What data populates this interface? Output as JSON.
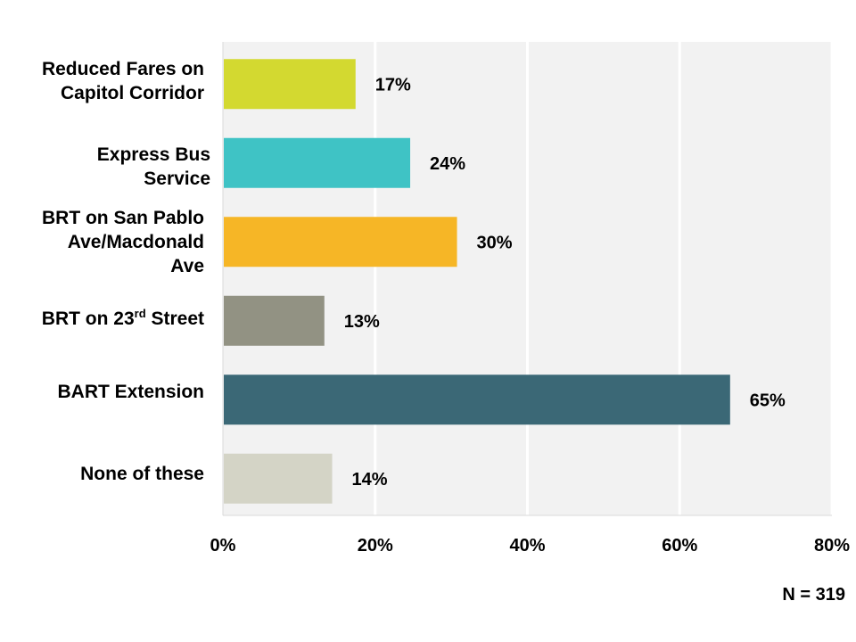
{
  "chart_data": {
    "type": "bar",
    "orientation": "horizontal",
    "categories": [
      "Reduced Fares on Capitol Corridor",
      "Express Bus Service",
      "BRT on San Pablo Ave/Macdonald Ave",
      "BRT on 23rd Street",
      "BART Extension",
      "None of these"
    ],
    "values": [
      17,
      24,
      30,
      13,
      65,
      14
    ],
    "value_labels": [
      "17%",
      "24%",
      "30%",
      "13%",
      "65%",
      "14%"
    ],
    "colors": [
      "#d3d930",
      "#3fc3c5",
      "#f6b626",
      "#929283",
      "#3b6876",
      "#d4d4c6"
    ],
    "xlim": [
      0,
      80
    ],
    "x_ticks": [
      0,
      20,
      40,
      60,
      80
    ],
    "x_tick_labels": [
      "0%",
      "20%",
      "40%",
      "60%",
      "80%"
    ],
    "grid": true,
    "plot_background": "#f2f2f2",
    "title": "",
    "xlabel": "",
    "ylabel": ""
  },
  "labels": {
    "cat0_line1": "Reduced Fares on",
    "cat0_line2": "Capitol Corridor",
    "cat1_line1": "Express Bus",
    "cat1_line2": "Service",
    "cat2_line1": "BRT on San Pablo",
    "cat2_line2": "Ave/Macdonald",
    "cat2_line3": "Ave",
    "cat3_pre": "BRT on 23",
    "cat3_sup": "rd",
    "cat3_post": " Street",
    "cat4": "BART Extension",
    "cat5": "None of these"
  },
  "footnote": "N = 319"
}
